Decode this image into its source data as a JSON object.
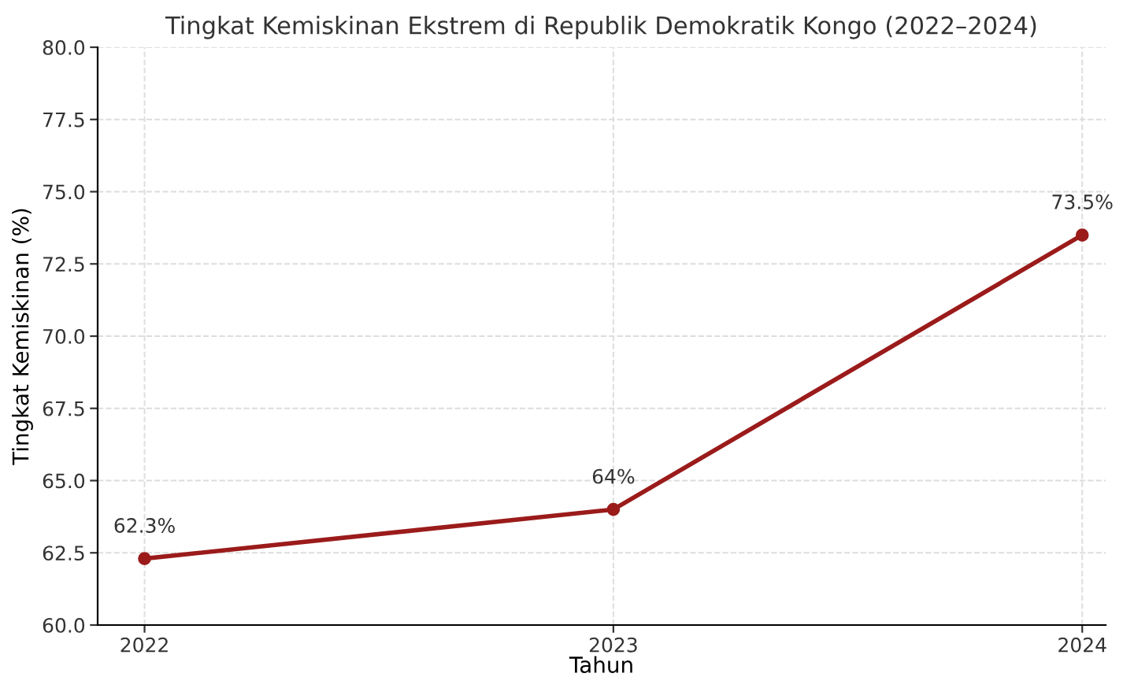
{
  "chart_data": {
    "type": "line",
    "title": "Tingkat Kemiskinan Ekstrem di Republik Demokratik Kongo (2022–2024)",
    "xlabel": "Tahun",
    "ylabel": "Tingkat Kemiskinan (%)",
    "x": [
      2022,
      2023,
      2024
    ],
    "series": [
      {
        "color": "#9b1b1b",
        "values": [
          62.3,
          64,
          73.5
        ],
        "value_labels": [
          "62.3%",
          "64%",
          "73.5%"
        ]
      }
    ],
    "xlim": [
      2021.9,
      2024.05
    ],
    "xticks": [
      2022,
      2023,
      2024
    ],
    "ylim": [
      60,
      80
    ],
    "yticks": [
      {
        "value": 60,
        "label": "60.0"
      },
      {
        "value": 62.5,
        "label": "62.5"
      },
      {
        "value": 65,
        "label": "65.0"
      },
      {
        "value": 67.5,
        "label": "67.5"
      },
      {
        "value": 70,
        "label": "70.0"
      },
      {
        "value": 72.5,
        "label": "72.5"
      },
      {
        "value": 75,
        "label": "75.0"
      },
      {
        "value": 77.5,
        "label": "77.5"
      },
      {
        "value": 80,
        "label": "80.0"
      }
    ],
    "grid": true,
    "marker": "circle",
    "line_style": "solid",
    "legend": false
  }
}
